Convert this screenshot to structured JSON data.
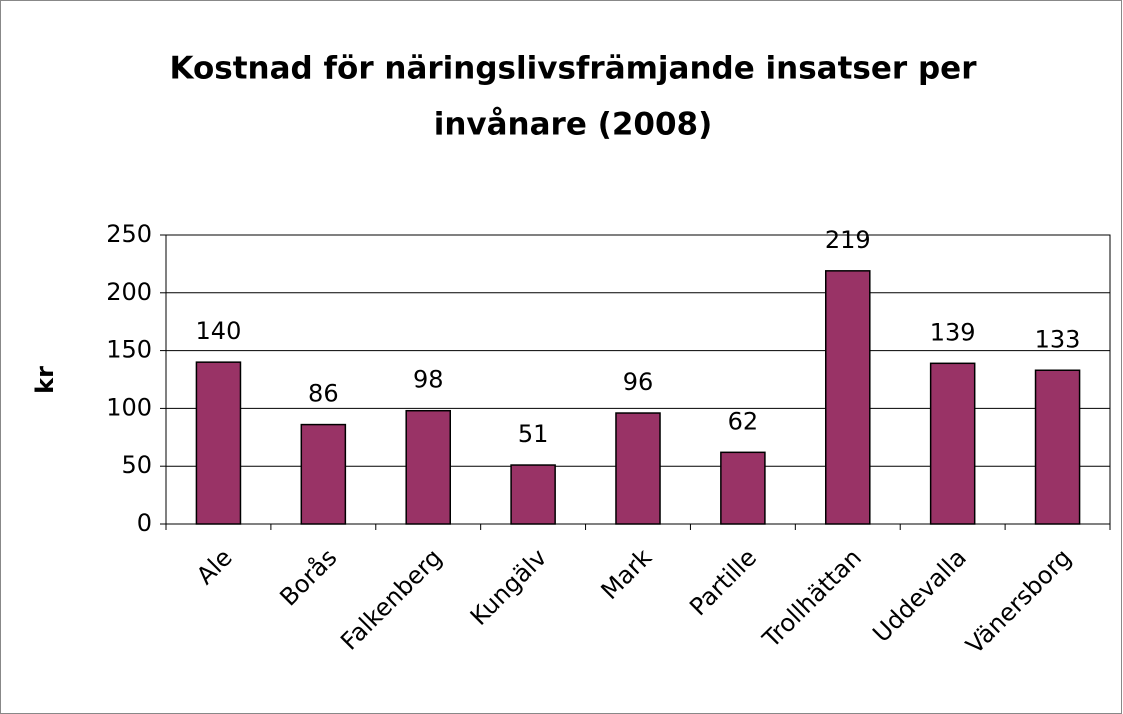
{
  "chart_data": {
    "type": "bar",
    "title": [
      "Kostnad för näringslivsfrämjande insatser per",
      "invånare (2008)"
    ],
    "y_label": "kr",
    "categories": [
      "Ale",
      "Borås",
      "Falkenberg",
      "Kungälv",
      "Mark",
      "Partille",
      "Trollhättan",
      "Uddevalla",
      "Vänersborg"
    ],
    "values": [
      140,
      86,
      98,
      51,
      96,
      62,
      219,
      139,
      133
    ],
    "color": "#993366",
    "ylim": [
      0,
      250
    ],
    "yticks": [
      0,
      50,
      100,
      150,
      200,
      250
    ],
    "grid": true
  }
}
